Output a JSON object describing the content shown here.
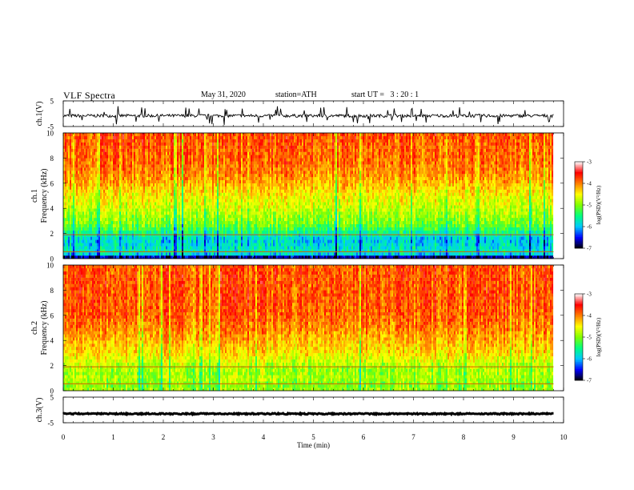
{
  "header": {
    "title": "VLF Spectra",
    "date": "May 31, 2020",
    "station": "station=ATH",
    "start": "start UT =   3 : 20 : 1"
  },
  "colorbar": {
    "label": "log(PSD)(V²/Hz)",
    "ticks": [
      "-3",
      "-4",
      "-5",
      "-6",
      "-7"
    ],
    "colors": [
      "#000000",
      "#0000ff",
      "#00c8ff",
      "#00ff80",
      "#80ff00",
      "#ffff00",
      "#ff8000",
      "#ff0000",
      "#ffffff"
    ]
  },
  "chart_data": [
    {
      "type": "line",
      "panel": "ch1-waveform",
      "ylabel": "ch.1(V)",
      "ylim": [
        -5,
        5
      ],
      "yticks": [
        "5",
        "-5"
      ],
      "xlim": [
        0,
        10
      ],
      "baseline": -0.8,
      "noise_amplitude": 0.6,
      "color": "#000000"
    },
    {
      "type": "heatmap",
      "panel": "ch1-spectrogram",
      "ylabel": "ch.1 Frequency (kHz)",
      "ylim": [
        0,
        10
      ],
      "yticks": [
        "0",
        "2",
        "4",
        "6",
        "8",
        "10"
      ],
      "xlim": [
        0,
        10
      ],
      "x_end": 9.8,
      "profile": {
        "frequency_khz": [
          0,
          0.3,
          0.5,
          1.0,
          1.5,
          2.0,
          2.5,
          3.0,
          4.0,
          5.0,
          6.0,
          7.0,
          8.0,
          10.0
        ],
        "log_psd": [
          -7.2,
          -6.0,
          -5.7,
          -5.8,
          -5.9,
          -5.6,
          -5.2,
          -5.0,
          -4.7,
          -4.5,
          -4.2,
          -4.0,
          -3.9,
          -3.8
        ]
      },
      "colorbar_range": [
        -7,
        -3
      ]
    },
    {
      "type": "heatmap",
      "panel": "ch2-spectrogram",
      "ylabel": "ch.2 Frequency (kHz)",
      "ylim": [
        0,
        10
      ],
      "yticks": [
        "0",
        "2",
        "4",
        "6",
        "8",
        "10"
      ],
      "xlim": [
        0,
        10
      ],
      "x_end": 9.8,
      "profile": {
        "frequency_khz": [
          0,
          0.5,
          1.0,
          1.5,
          2.0,
          3.0,
          4.0,
          5.0,
          6.0,
          8.0,
          10.0
        ],
        "log_psd": [
          -4.9,
          -5.0,
          -4.8,
          -4.9,
          -4.8,
          -4.4,
          -4.2,
          -4.0,
          -3.85,
          -3.8,
          -3.8
        ]
      },
      "colorbar_range": [
        -7,
        -3
      ]
    },
    {
      "type": "line",
      "panel": "ch3-waveform",
      "ylabel": "ch.3(V)",
      "ylim": [
        -5,
        5
      ],
      "yticks": [
        "5",
        "-5"
      ],
      "xlim": [
        0,
        10
      ],
      "baseline": -1.5,
      "noise_amplitude": 0.25,
      "color": "#000000"
    }
  ],
  "x_axis": {
    "label": "Time (min)",
    "ticks": [
      "0",
      "1",
      "2",
      "3",
      "4",
      "5",
      "6",
      "7",
      "8",
      "9",
      "10"
    ]
  }
}
